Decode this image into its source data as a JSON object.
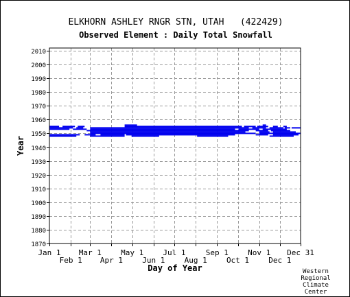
{
  "chart_data": {
    "type": "heatmap",
    "title": "ELKHORN ASHLEY RNGR STN, UTAH   (422429)",
    "subtitle": "Observed Element : Daily Total Snowfall",
    "xlabel": "Day of Year",
    "ylabel": "Year",
    "ylim": [
      1870,
      2012
    ],
    "xlim": [
      1,
      365
    ],
    "y_ticks": [
      1870,
      1880,
      1890,
      1900,
      1910,
      1920,
      1930,
      1940,
      1950,
      1960,
      1970,
      1980,
      1990,
      2000,
      2010
    ],
    "x_ticks_upper": [
      {
        "label": "Jan 1",
        "day": 1
      },
      {
        "label": "Mar 1",
        "day": 60
      },
      {
        "label": "May 1",
        "day": 121
      },
      {
        "label": "Jul 1",
        "day": 182
      },
      {
        "label": "Sep 1",
        "day": 244
      },
      {
        "label": "Nov 1",
        "day": 305
      },
      {
        "label": "Dec 31",
        "day": 365
      }
    ],
    "x_ticks_lower": [
      {
        "label": "Feb 1",
        "day": 32
      },
      {
        "label": "Apr 1",
        "day": 91
      },
      {
        "label": "Jun 1",
        "day": 152
      },
      {
        "label": "Aug 1",
        "day": 213
      },
      {
        "label": "Oct 1",
        "day": 274
      },
      {
        "label": "Dec 1",
        "day": 335
      }
    ],
    "grid": true,
    "color": "#0000ee",
    "year_coverage": [
      {
        "year": 1948,
        "segments": [
          [
            1,
            40
          ],
          [
            60,
            110
          ],
          [
            120,
            160
          ],
          [
            215,
            260
          ],
          [
            320,
            355
          ]
        ]
      },
      {
        "year": 1949,
        "segments": [
          [
            1,
            45
          ],
          [
            52,
            68
          ],
          [
            75,
            110
          ],
          [
            112,
            270
          ],
          [
            300,
            318
          ],
          [
            325,
            362
          ]
        ]
      },
      {
        "year": 1950,
        "segments": [
          [
            60,
            300
          ],
          [
            305,
            365
          ]
        ]
      },
      {
        "year": 1951,
        "segments": [
          [
            60,
            285
          ],
          [
            305,
            320
          ],
          [
            325,
            358
          ]
        ]
      },
      {
        "year": 1952,
        "segments": [
          [
            55,
            290
          ],
          [
            300,
            318
          ],
          [
            322,
            350
          ]
        ]
      },
      {
        "year": 1953,
        "segments": [
          [
            1,
            30
          ],
          [
            35,
            55
          ],
          [
            60,
            270
          ],
          [
            275,
            305
          ],
          [
            310,
            345
          ]
        ]
      },
      {
        "year": 1954,
        "segments": [
          [
            1,
            35
          ],
          [
            40,
            50
          ],
          [
            60,
            290
          ],
          [
            295,
            315
          ],
          [
            320,
            340
          ],
          [
            342,
            350
          ],
          [
            352,
            365
          ]
        ]
      },
      {
        "year": 1955,
        "segments": [
          [
            1,
            15
          ],
          [
            20,
            38
          ],
          [
            42,
            52
          ],
          [
            110,
            280
          ],
          [
            283,
            300
          ],
          [
            302,
            318
          ],
          [
            325,
            332
          ],
          [
            340,
            345
          ]
        ]
      },
      {
        "year": 1956,
        "segments": [
          [
            110,
            128
          ],
          [
            310,
            315
          ]
        ]
      }
    ],
    "credit": "Western\nRegional\nClimate\nCenter"
  }
}
